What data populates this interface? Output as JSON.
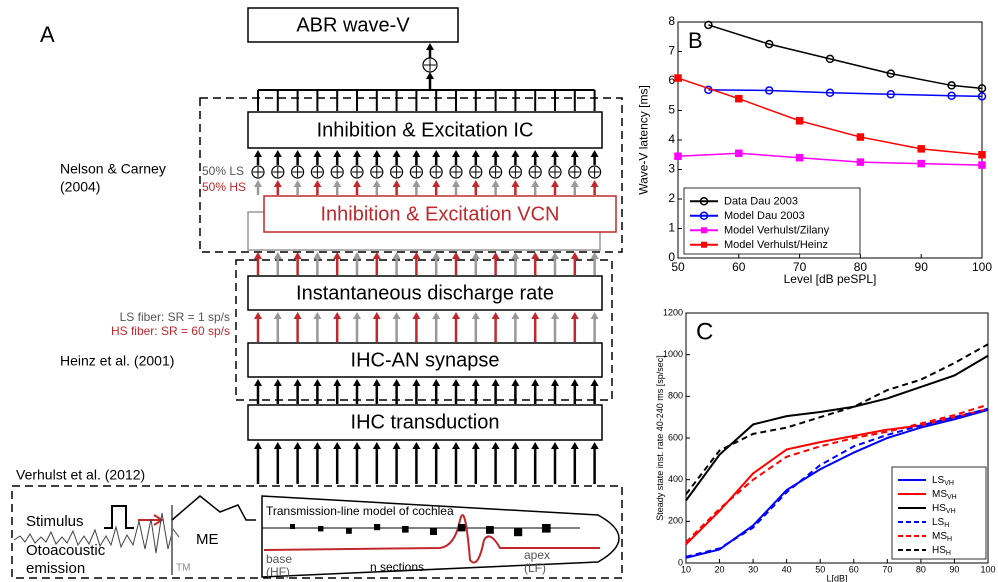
{
  "panel_a": {
    "label": "A",
    "output": "ABR wave-V",
    "ic_stage": "Inhibition & Excitation IC",
    "vcn_stage": "Inhibition & Excitation VCN",
    "nelson_ref": [
      "Nelson & Carney",
      "(2004)"
    ],
    "ls_share": "50% LS",
    "hs_share": "50% HS",
    "rate_stage": "Instantaneous discharge rate",
    "ls_fiber": "LS fiber: SR = 1 sp/s",
    "hs_fiber": "HS fiber: SR = 60 sp/s",
    "heinz_ref": "Heinz et al. (2001)",
    "synapse_stage": "IHC-AN synapse",
    "transduction_stage": "IHC transduction",
    "verhulst_ref": "Verhulst et al. (2012)",
    "stimulus": "Stimulus",
    "otoacoustic": [
      "Otoacoustic",
      "emission"
    ],
    "me": "ME",
    "tm": "TM",
    "cochlea": "Transmission-line model of cochlea",
    "base": [
      "base",
      "(HF)"
    ],
    "sections": "n sections",
    "apex": [
      "apex",
      "(LF)"
    ]
  },
  "chart_data": [
    {
      "type": "line",
      "panel": "B",
      "xlabel": "Level [dB peSPL]",
      "ylabel": "Wave-V latency [ms]",
      "xlim": [
        50,
        100
      ],
      "xticks": [
        50,
        60,
        70,
        80,
        90,
        100
      ],
      "ylim": [
        0,
        8
      ],
      "yticks": [
        0,
        1,
        2,
        3,
        4,
        5,
        6,
        7,
        8
      ],
      "legend": "lower left",
      "series": [
        {
          "name": "Data Dau 2003",
          "color": "#000000",
          "marker": "circle",
          "x": [
            55,
            65,
            75,
            85,
            95,
            100
          ],
          "values": [
            7.9,
            7.25,
            6.75,
            6.25,
            5.85,
            5.75
          ]
        },
        {
          "name": "Model Dau 2003",
          "color": "#0000ff",
          "marker": "circle",
          "x": [
            55,
            65,
            75,
            85,
            95,
            100
          ],
          "values": [
            5.7,
            5.68,
            5.6,
            5.55,
            5.5,
            5.48
          ]
        },
        {
          "name": "Model Verhulst/Zilany",
          "color": "#ff00ff",
          "marker": "square",
          "x": [
            50,
            60,
            70,
            80,
            90,
            100
          ],
          "values": [
            3.45,
            3.55,
            3.4,
            3.25,
            3.2,
            3.15
          ]
        },
        {
          "name": "Model Verhulst/Heinz",
          "color": "#ff0000",
          "marker": "square",
          "x": [
            50,
            60,
            70,
            80,
            90,
            100
          ],
          "values": [
            6.1,
            5.4,
            4.65,
            4.1,
            3.7,
            3.5
          ]
        }
      ]
    },
    {
      "type": "line",
      "panel": "C",
      "xlabel": "L[dB]",
      "ylabel": "Steady state inst. rate 40-240 ms [sp/sec]",
      "xlim": [
        10,
        100
      ],
      "xticks": [
        10,
        20,
        30,
        40,
        50,
        60,
        70,
        80,
        90,
        100
      ],
      "ylim": [
        0,
        1200
      ],
      "yticks": [
        0,
        200,
        400,
        600,
        800,
        1000,
        1200
      ],
      "legend": "lower right",
      "x": [
        10,
        20,
        30,
        40,
        50,
        60,
        70,
        80,
        90,
        100
      ],
      "series": [
        {
          "name": "LS",
          "name_sub": "VH",
          "color": "#0000ff",
          "dash": false,
          "values": [
            25,
            65,
            180,
            350,
            450,
            530,
            600,
            650,
            690,
            735
          ]
        },
        {
          "name": "MS",
          "name_sub": "VH",
          "color": "#ff0000",
          "dash": false,
          "values": [
            90,
            250,
            430,
            545,
            580,
            610,
            640,
            660,
            700,
            740
          ]
        },
        {
          "name": "HS",
          "name_sub": "VH",
          "color": "#000000",
          "dash": false,
          "values": [
            300,
            520,
            665,
            705,
            725,
            750,
            790,
            845,
            900,
            995
          ]
        },
        {
          "name": "LS",
          "name_sub": "H",
          "color": "#0000ff",
          "dash": true,
          "values": [
            30,
            70,
            170,
            340,
            470,
            560,
            615,
            660,
            700,
            740
          ]
        },
        {
          "name": "MS",
          "name_sub": "H",
          "color": "#ff0000",
          "dash": true,
          "values": [
            100,
            260,
            400,
            510,
            560,
            600,
            630,
            670,
            710,
            760
          ]
        },
        {
          "name": "HS",
          "name_sub": "H",
          "color": "#000000",
          "dash": true,
          "values": [
            330,
            540,
            620,
            650,
            700,
            750,
            830,
            880,
            960,
            1050
          ]
        }
      ]
    }
  ]
}
